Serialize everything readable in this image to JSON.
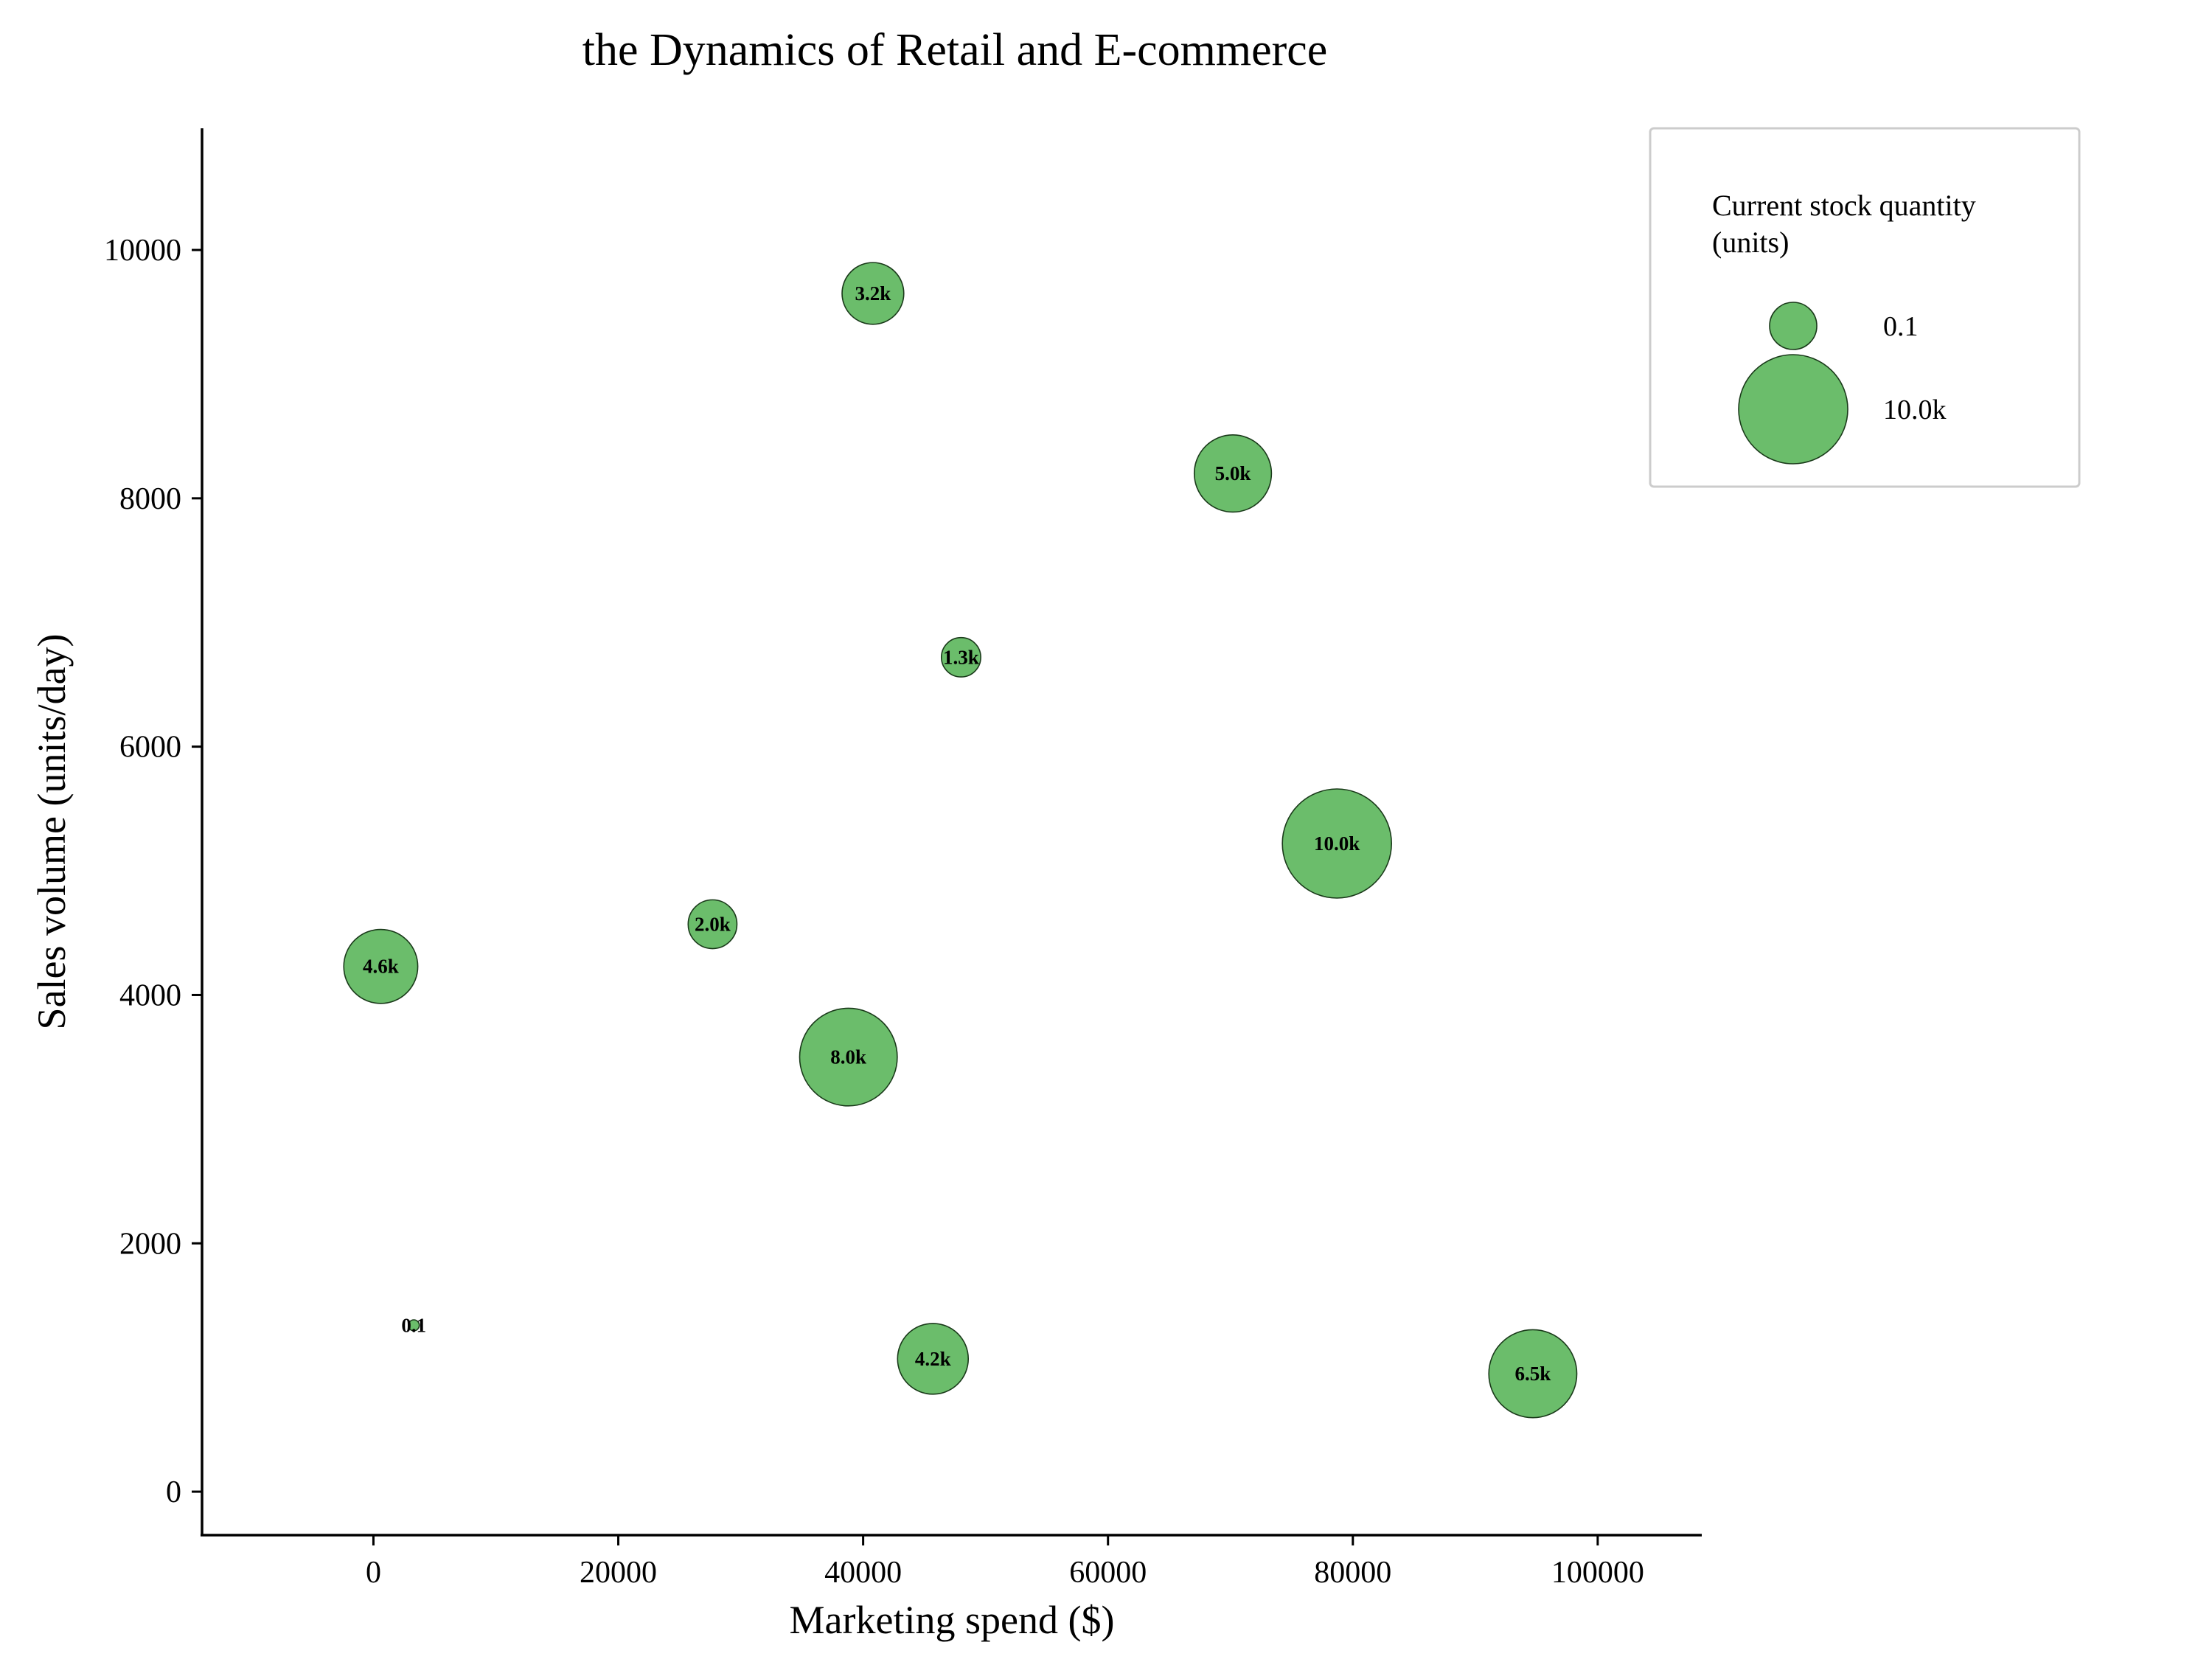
{
  "chart_data": {
    "type": "scatter",
    "title": "the Dynamics of Retail and E-commerce",
    "xlabel": "Marketing spend ($)",
    "ylabel": "Sales volume (units/day)",
    "xlim": [
      -14000,
      108500
    ],
    "ylim": [
      -350,
      10980
    ],
    "xticks": [
      0,
      20000,
      40000,
      60000,
      80000,
      100000
    ],
    "yticks": [
      0,
      2000,
      4000,
      6000,
      8000,
      10000
    ],
    "bubble_color": "#6bbd6b",
    "bubble_edge_color": "#1a3a1a",
    "size_label": "Current stock quantity (units)",
    "legend": {
      "title_line1": "Current stock quantity",
      "title_line2": "(units)",
      "entries": [
        {
          "size": 100,
          "label": "0.1"
        },
        {
          "size": 10000,
          "label": "10.0k"
        }
      ],
      "placement": "top-right"
    },
    "points": [
      {
        "x": 40800,
        "y": 9650,
        "size": 3200,
        "label": "3.2k"
      },
      {
        "x": 70200,
        "y": 8200,
        "size": 5000,
        "label": "5.0k"
      },
      {
        "x": 48000,
        "y": 6720,
        "size": 1300,
        "label": "1.3k"
      },
      {
        "x": 78700,
        "y": 5220,
        "size": 10000,
        "label": "10.0k"
      },
      {
        "x": 27700,
        "y": 4570,
        "size": 2000,
        "label": "2.0k"
      },
      {
        "x": 600,
        "y": 4230,
        "size": 4600,
        "label": "4.6k"
      },
      {
        "x": 38800,
        "y": 3500,
        "size": 8000,
        "label": "8.0k"
      },
      {
        "x": 3300,
        "y": 1340,
        "size": 100,
        "label": "0.1"
      },
      {
        "x": 45700,
        "y": 1070,
        "size": 4200,
        "label": "4.2k"
      },
      {
        "x": 94700,
        "y": 950,
        "size": 6500,
        "label": "6.5k"
      }
    ]
  }
}
